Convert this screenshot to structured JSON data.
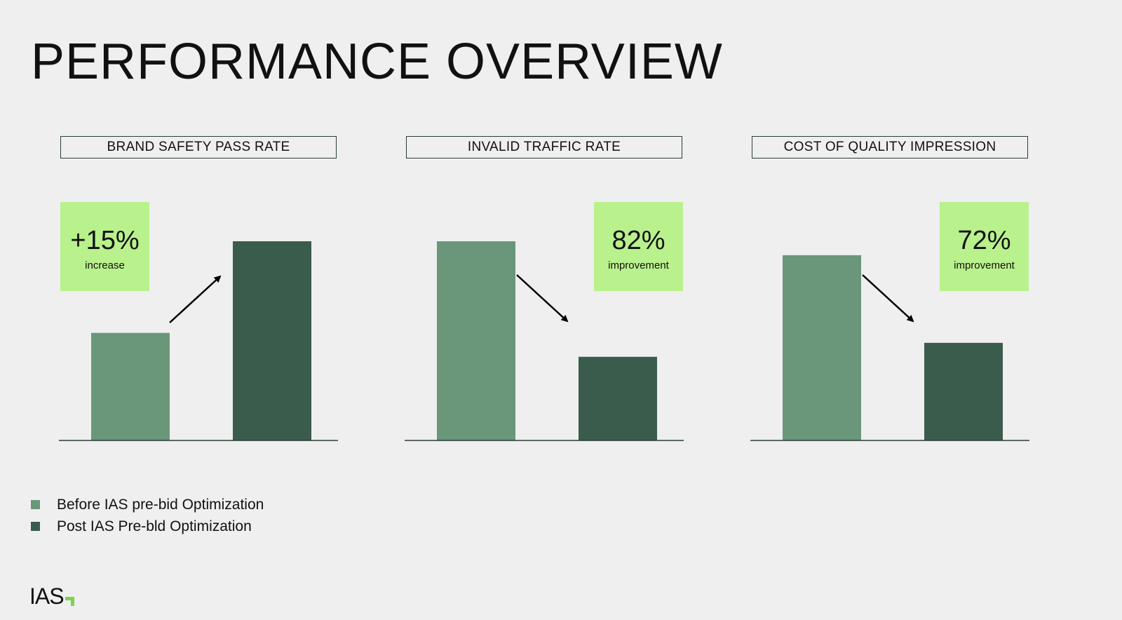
{
  "title": "PERFORMANCE OVERVIEW",
  "colors": {
    "before": "#6a977a",
    "post": "#3a5c4c",
    "callout": "#b9f18c",
    "baseline": "#2b3d34",
    "logo_accent": "#78d64b"
  },
  "chart_data": [
    {
      "type": "bar",
      "title": "BRAND SAFETY PASS RATE",
      "categories": [
        "Before IAS pre-bid Optimization",
        "Post IAS Pre-bld Optimization"
      ],
      "values": [
        0.54,
        1.0
      ],
      "arrow": "up",
      "callout": {
        "value": "+15%",
        "label": "increase",
        "position": "top-left"
      }
    },
    {
      "type": "bar",
      "title": "INVALID TRAFFIC RATE",
      "categories": [
        "Before IAS pre-bid Optimization",
        "Post IAS Pre-bld Optimization"
      ],
      "values": [
        1.0,
        0.42
      ],
      "arrow": "down",
      "callout": {
        "value": "82%",
        "label": "improvement",
        "position": "top-right"
      }
    },
    {
      "type": "bar",
      "title": "COST OF QUALITY IMPRESSION",
      "categories": [
        "Before IAS pre-bid Optimization",
        "Post IAS Pre-bld Optimization"
      ],
      "values": [
        0.93,
        0.49
      ],
      "arrow": "down",
      "callout": {
        "value": "72%",
        "label": "improvement",
        "position": "top-right"
      }
    }
  ],
  "legend": [
    {
      "label": "Before IAS pre-bid Optimization",
      "color": "#6a977a"
    },
    {
      "label": "Post IAS Pre-bld Optimization",
      "color": "#3a5c4c"
    }
  ],
  "logo": {
    "text": "IAS"
  }
}
